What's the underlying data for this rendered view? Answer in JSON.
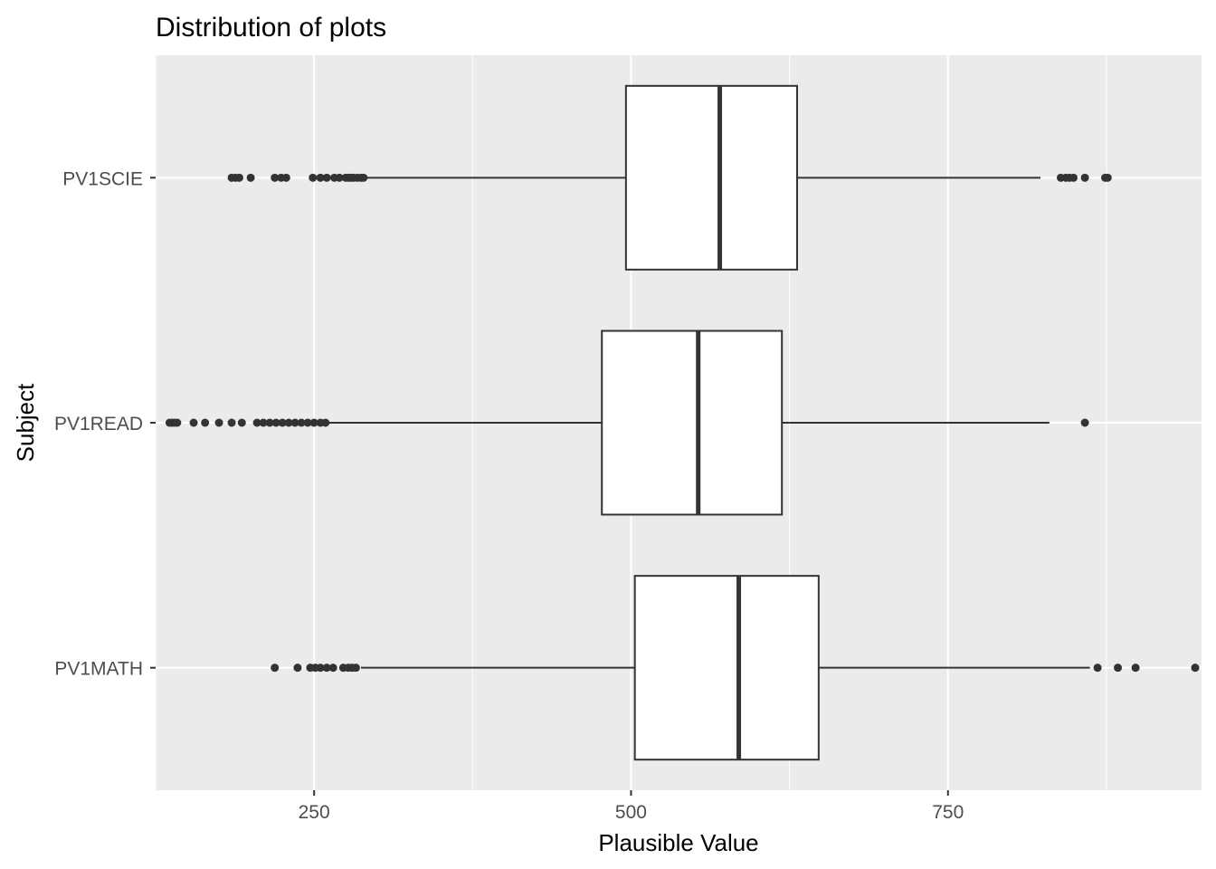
{
  "chart_data": {
    "type": "boxplot",
    "orientation": "horizontal",
    "title": "Distribution of plots",
    "xlabel": "Plausible Value",
    "ylabel": "Subject",
    "xlim": [
      125,
      950
    ],
    "x_ticks": [
      250,
      500,
      750
    ],
    "x_tick_labels": [
      "250",
      "500",
      "750"
    ],
    "grid": true,
    "colors": {
      "panel": "#ebebeb",
      "grid_major": "#ffffff",
      "box_fill": "#ffffff",
      "box_line": "#333333",
      "outlier": "#333333"
    },
    "categories": [
      "PV1SCIE",
      "PV1READ",
      "PV1MATH"
    ],
    "series": [
      {
        "category": "PV1SCIE",
        "whisker_low": 290,
        "q1": 496,
        "median": 570,
        "q3": 631,
        "whisker_high": 823,
        "outliers": [
          185,
          188,
          191,
          200,
          219,
          224,
          228,
          249,
          255,
          260,
          266,
          270,
          275,
          277,
          279,
          281,
          284,
          287,
          289,
          839,
          843,
          846,
          849,
          858,
          874,
          876
        ]
      },
      {
        "category": "PV1READ",
        "whisker_low": 262,
        "q1": 477,
        "median": 553,
        "q3": 619,
        "whisker_high": 830,
        "outliers": [
          136,
          138,
          140,
          142,
          155,
          164,
          175,
          185,
          193,
          205,
          210,
          215,
          220,
          225,
          230,
          235,
          240,
          245,
          250,
          255,
          259,
          858
        ]
      },
      {
        "category": "PV1MATH",
        "whisker_low": 287,
        "q1": 503,
        "median": 585,
        "q3": 648,
        "whisker_high": 862,
        "outliers": [
          219,
          237,
          247,
          251,
          255,
          260,
          265,
          273,
          277,
          280,
          283,
          868,
          884,
          898,
          945
        ]
      }
    ]
  }
}
